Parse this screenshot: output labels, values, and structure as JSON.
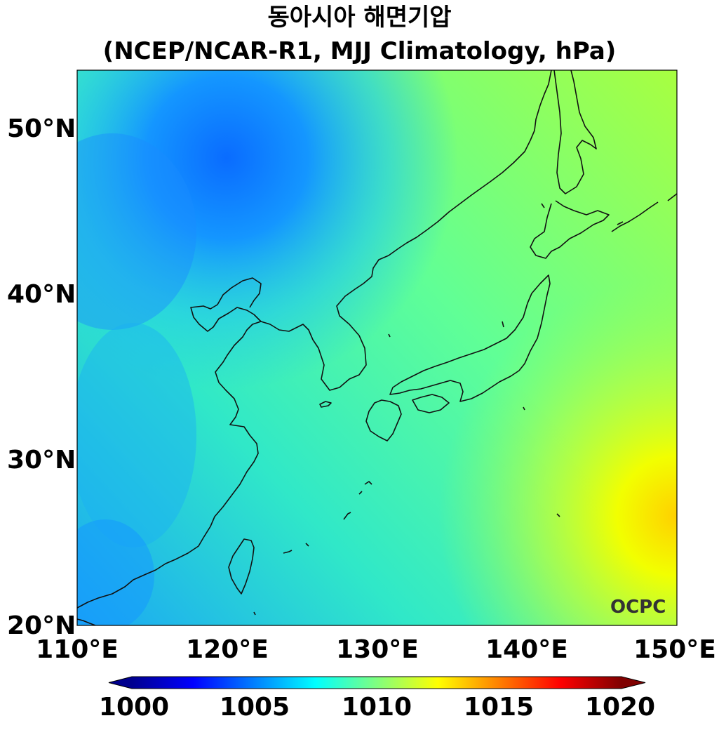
{
  "title": {
    "line1": "동아시아 해면기압",
    "line2": "(NCEP/NCAR-R1, MJJ Climatology, hPa)"
  },
  "map": {
    "extent": {
      "lon": [
        110,
        150
      ],
      "lat": [
        20,
        53.5
      ]
    },
    "lat_ticks": [
      "20°N",
      "30°N",
      "40°N",
      "50°N"
    ],
    "lon_ticks": [
      "110°E",
      "120°E",
      "130°E",
      "140°E",
      "150°E"
    ],
    "watermark": "OCPC"
  },
  "colorbar": {
    "range": [
      1000,
      1020
    ],
    "ticks": [
      "1000",
      "1005",
      "1010",
      "1015",
      "1020"
    ],
    "colormap": "jet",
    "extend": "both"
  },
  "pressure_field": {
    "units": "hPa",
    "low_center": {
      "lon": 123,
      "lat": 48,
      "value": 1004
    },
    "high_center": {
      "lon": 150,
      "lat": 27,
      "value": 1016
    }
  }
}
